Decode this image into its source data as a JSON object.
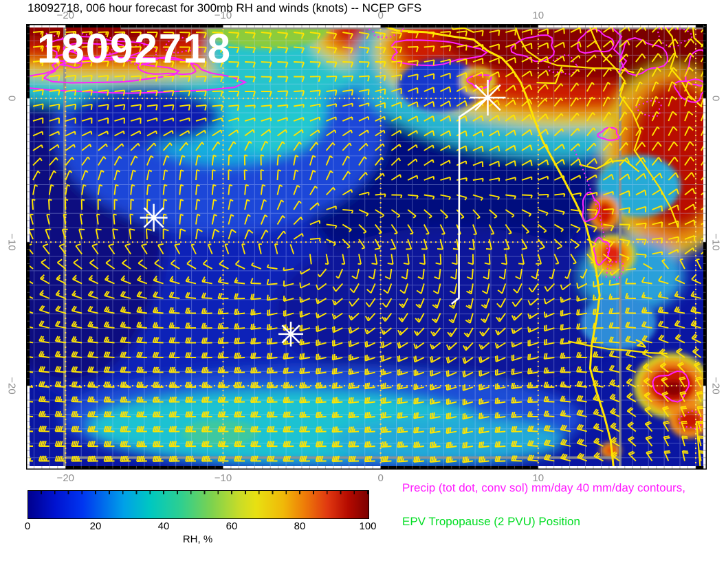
{
  "title": "18092718, 006 hour forecast for 300mb RH and winds (knots) -- NCEP GFS",
  "stamp": "18092718",
  "axes": {
    "lon_ticks": [
      {
        "value": -20,
        "label": "−20"
      },
      {
        "value": -10,
        "label": "−10"
      },
      {
        "value": 0,
        "label": "0"
      },
      {
        "value": 10,
        "label": "10"
      }
    ],
    "lat_ticks": [
      {
        "value": 0,
        "label": "0"
      },
      {
        "value": -10,
        "label": "−10"
      },
      {
        "value": -20,
        "label": "−20"
      }
    ]
  },
  "colorbar": {
    "label": "RH, %",
    "ticks": [
      "0",
      "20",
      "40",
      "60",
      "80",
      "100"
    ],
    "min": 0,
    "max": 100
  },
  "legend": {
    "precip": {
      "text": "Precip (tot dot, conv sol) mm/day 40 mm/day contours,",
      "color": "#ff1aff"
    },
    "epv": {
      "text": "EPV Tropopause (2 PVU) Position",
      "color": "#00dd22"
    }
  },
  "chart_data": {
    "type": "heatmap",
    "field": "300mb relative humidity, %",
    "overlay": "wind barbs, knots",
    "model": "NCEP GFS",
    "init_time": "18092718",
    "forecast_hour": 6,
    "lon_range": [
      -22.5,
      20.7
    ],
    "lat_range": [
      -25.83,
      5.17
    ],
    "grid_major_deg": 10,
    "grid_minor_deg": 1,
    "colors": {
      "barb": "#ffe400",
      "coast": "#ffe400",
      "precip_contour": "#ff20ff",
      "grat_major": "#ffd24d",
      "gray_line": "#909090",
      "marker": "#ffffff",
      "base_rh": "#0a16a2"
    },
    "rh_blobs": [
      [
        -12.0,
        -13.7,
        300,
        190,
        "#0d24b8"
      ],
      [
        4.2,
        -6.1,
        210,
        150,
        "#060e7e"
      ],
      [
        -19.8,
        -8.9,
        140,
        230,
        "#071080"
      ],
      [
        4.6,
        -14.7,
        260,
        120,
        "#0a129a"
      ],
      [
        -10.2,
        -2.2,
        240,
        150,
        "#1a46d8"
      ],
      [
        -9.8,
        -0.3,
        150,
        90,
        "#18aede"
      ],
      [
        -6.7,
        -1.3,
        70,
        55,
        "#20c8d0"
      ],
      [
        -12.8,
        1.6,
        270,
        48,
        "#20bcd4"
      ],
      [
        -16.3,
        3.3,
        310,
        80,
        "#28c0cc"
      ],
      [
        -16.8,
        4.2,
        285,
        62,
        "#dcd31e"
      ],
      [
        -16.9,
        4.5,
        272,
        54,
        "#ee8c10"
      ],
      [
        -17.0,
        4.8,
        260,
        48,
        "#cd1a06"
      ],
      [
        -18.3,
        5.4,
        185,
        34,
        "#8a0000"
      ],
      [
        -15.0,
        -1.2,
        110,
        42,
        "#0f1eb0"
      ],
      [
        -7.2,
        4.8,
        90,
        28,
        "#8ccc3a"
      ],
      [
        -5.4,
        3.3,
        130,
        65,
        "#26c4cc"
      ],
      [
        3.3,
        4.0,
        175,
        55,
        "#d8d020"
      ],
      [
        3.4,
        4.4,
        165,
        48,
        "#ee8c10"
      ],
      [
        3.6,
        4.6,
        155,
        42,
        "#ce1a06"
      ],
      [
        3.8,
        5.0,
        120,
        28,
        "#880000"
      ],
      [
        3.8,
        0.9,
        62,
        38,
        "#1238cc"
      ],
      [
        12.1,
        2.3,
        320,
        135,
        "#26b4d0"
      ],
      [
        12.7,
        3.3,
        300,
        112,
        "#dcd31e"
      ],
      [
        12.9,
        3.6,
        290,
        103,
        "#ee8c10"
      ],
      [
        13.1,
        3.9,
        280,
        96,
        "#cd1a06"
      ],
      [
        14.2,
        4.5,
        240,
        72,
        "#870000"
      ],
      [
        18.2,
        3.0,
        90,
        60,
        "#7a0000"
      ],
      [
        18.4,
        -4.4,
        100,
        138,
        "#d5cc22"
      ],
      [
        18.6,
        -4.2,
        90,
        128,
        "#e8880e"
      ],
      [
        18.8,
        -3.9,
        72,
        110,
        "#b90e00"
      ],
      [
        16.4,
        -6.1,
        60,
        45,
        "#28aad6"
      ],
      [
        16.0,
        -12.3,
        75,
        55,
        "#2ba0da"
      ],
      [
        15.1,
        -15.6,
        55,
        40,
        "#2f8cd8"
      ],
      [
        -3.7,
        -22.3,
        380,
        75,
        "#1a4ed6"
      ],
      [
        -5.9,
        -22.8,
        290,
        52,
        "#1cc2d2"
      ],
      [
        4.2,
        -23.8,
        170,
        35,
        "#22aad8"
      ],
      [
        -10.2,
        -23.3,
        55,
        20,
        "#3cc8a0"
      ],
      [
        6.2,
        1.2,
        26,
        21,
        "#d8cc28"
      ],
      [
        6.2,
        1.2,
        17,
        14,
        "#e06010"
      ],
      [
        14.2,
        -8.0,
        22,
        26,
        "#ef8c10"
      ],
      [
        14.2,
        -8.0,
        13,
        17,
        "#d01806"
      ],
      [
        14.7,
        -10.9,
        34,
        30,
        "#d8ce22"
      ],
      [
        14.7,
        -10.9,
        26,
        23,
        "#f0960e"
      ],
      [
        14.7,
        -10.9,
        16,
        15,
        "#e02008"
      ],
      [
        18.5,
        -20.0,
        56,
        48,
        "#d6cc20"
      ],
      [
        18.5,
        -20.0,
        46,
        38,
        "#ee8812"
      ],
      [
        18.5,
        -20.0,
        34,
        27,
        "#cc1404"
      ],
      [
        18.6,
        -20.2,
        16,
        12,
        "#8a0000"
      ],
      [
        19.6,
        -22.4,
        30,
        26,
        "#ee8812"
      ],
      [
        19.6,
        -22.4,
        18,
        15,
        "#c81404"
      ],
      [
        14.6,
        -24.5,
        15,
        12,
        "#ef9010"
      ],
      [
        14.6,
        -24.5,
        8,
        6,
        "#e03008"
      ]
    ],
    "wind_grid": {
      "lons": [
        -22,
        -15,
        -8,
        -1,
        6,
        13,
        19.5
      ],
      "lats": [
        4.5,
        0,
        -5,
        -10,
        -15,
        -20,
        -25.5
      ],
      "dir_from_deg": [
        [
          85,
          90,
          95,
          100,
          80,
          60,
          40
        ],
        [
          80,
          85,
          90,
          75,
          55,
          25,
          15
        ],
        [
          40,
          15,
          350,
          30,
          70,
          50,
          35
        ],
        [
          335,
          355,
          25,
          150,
          175,
          120,
          70
        ],
        [
          290,
          278,
          262,
          225,
          195,
          260,
          280
        ],
        [
          275,
          270,
          268,
          262,
          250,
          275,
          330
        ],
        [
          270,
          268,
          270,
          268,
          262,
          290,
          350
        ]
      ],
      "speed_kt": [
        [
          15,
          12,
          10,
          12,
          12,
          8,
          10
        ],
        [
          10,
          10,
          8,
          8,
          10,
          6,
          8
        ],
        [
          5,
          5,
          5,
          5,
          8,
          8,
          8
        ],
        [
          8,
          8,
          8,
          8,
          10,
          10,
          12
        ],
        [
          18,
          25,
          25,
          15,
          15,
          20,
          25
        ],
        [
          30,
          35,
          38,
          30,
          22,
          28,
          18
        ],
        [
          45,
          45,
          42,
          40,
          35,
          28,
          22
        ]
      ]
    },
    "coastline": [
      [
        0.1,
        5.06
      ],
      [
        1.1,
        4.7
      ],
      [
        2.9,
        4.6
      ],
      [
        4.6,
        4.3
      ],
      [
        5.9,
        4.1
      ],
      [
        6.8,
        3.3
      ],
      [
        7.7,
        2.8
      ],
      [
        8.3,
        2.1
      ],
      [
        8.9,
        1.1
      ],
      [
        9.3,
        0.0
      ],
      [
        9.7,
        -1.3
      ],
      [
        10.3,
        -3.0
      ],
      [
        11.0,
        -4.4
      ],
      [
        11.7,
        -5.8
      ],
      [
        12.4,
        -7.3
      ],
      [
        13.0,
        -8.7
      ],
      [
        13.4,
        -10.4
      ],
      [
        13.7,
        -12.1
      ],
      [
        13.9,
        -13.7
      ],
      [
        13.7,
        -15.4
      ],
      [
        13.4,
        -17.1
      ],
      [
        13.3,
        -18.8
      ],
      [
        13.7,
        -20.4
      ],
      [
        14.2,
        -22.1
      ],
      [
        14.6,
        -23.8
      ],
      [
        14.8,
        -25.83
      ]
    ],
    "borders": [
      [
        [
          8.5,
          5.17
        ],
        [
          8.8,
          4.2
        ],
        [
          9.3,
          3.3
        ],
        [
          10.1,
          2.7
        ],
        [
          11.2,
          2.3
        ],
        [
          12.4,
          2.2
        ],
        [
          13.5,
          2.1
        ],
        [
          14.8,
          2.1
        ],
        [
          16.1,
          1.8
        ]
      ],
      [
        [
          13.2,
          5.17
        ],
        [
          13.6,
          4.1
        ],
        [
          14.1,
          3.0
        ],
        [
          14.9,
          2.1
        ],
        [
          15.5,
          1.2
        ],
        [
          15.2,
          0.2
        ],
        [
          16.0,
          -1.0
        ],
        [
          16.5,
          -2.3
        ],
        [
          16.1,
          -3.6
        ],
        [
          16.9,
          -4.9
        ],
        [
          17.7,
          -6.2
        ],
        [
          18.4,
          -7.6
        ],
        [
          18.9,
          -9.0
        ]
      ],
      [
        [
          17.9,
          5.17
        ],
        [
          18.5,
          4.3
        ],
        [
          18.7,
          3.1
        ],
        [
          18.4,
          2.1
        ],
        [
          19.1,
          1.2
        ],
        [
          19.6,
          0.2
        ],
        [
          20.4,
          -0.6
        ]
      ],
      [
        [
          9.9,
          1.1
        ],
        [
          11.1,
          1.05
        ],
        [
          11.5,
          2.2
        ]
      ],
      [
        [
          12.6,
          -4.6
        ],
        [
          13.7,
          -4.9
        ],
        [
          14.6,
          -4.4
        ],
        [
          15.5,
          -4.3
        ],
        [
          16.4,
          -5.1
        ]
      ],
      [
        [
          11.9,
          -16.9
        ],
        [
          13.2,
          -17.2
        ],
        [
          14.5,
          -17.45
        ],
        [
          15.8,
          -17.55
        ],
        [
          17.0,
          -17.7
        ],
        [
          18.2,
          -17.75
        ]
      ],
      [
        [
          20.0,
          -22.5
        ],
        [
          20.7,
          -22.5
        ]
      ],
      [
        [
          20.05,
          -22.5
        ],
        [
          20.3,
          -25.83
        ]
      ],
      [
        [
          16.2,
          -16.8
        ],
        [
          16.6,
          -17.0
        ],
        [
          16.3,
          -17.2
        ],
        [
          16.8,
          -17.3
        ],
        [
          16.5,
          -16.9
        ]
      ],
      [
        [
          4.4,
          5.17
        ],
        [
          4.6,
          4.8
        ],
        [
          5.3,
          4.9
        ],
        [
          5.9,
          4.6
        ]
      ],
      [
        [
          19.8,
          5.17
        ],
        [
          19.9,
          4.2
        ],
        [
          20.5,
          3.6
        ]
      ]
    ],
    "precip_loops": [
      [
        -16.0,
        1.5,
        150,
        26,
        "s"
      ],
      [
        -17.5,
        1.9,
        90,
        18,
        "s"
      ],
      [
        -18.2,
        3.4,
        70,
        18,
        "s"
      ],
      [
        -18.2,
        3.4,
        42,
        10,
        "s"
      ],
      [
        -15.6,
        3.1,
        34,
        13,
        "d"
      ],
      [
        -19.7,
        2.7,
        20,
        11,
        "s"
      ],
      [
        -13.5,
        2.2,
        40,
        12,
        "s"
      ],
      [
        -12.7,
        3.7,
        24,
        11,
        "d"
      ],
      [
        3.3,
        3.2,
        65,
        18,
        "s"
      ],
      [
        0.3,
        4.7,
        22,
        9,
        "d"
      ],
      [
        6.3,
        1.2,
        16,
        10,
        "s"
      ],
      [
        9.8,
        3.5,
        30,
        18,
        "s"
      ],
      [
        11.6,
        2.3,
        20,
        13,
        "d"
      ],
      [
        13.6,
        3.9,
        26,
        16,
        "s"
      ],
      [
        16.6,
        2.9,
        34,
        24,
        "s"
      ],
      [
        18.6,
        4.3,
        24,
        13,
        "d"
      ],
      [
        19.7,
        0.6,
        22,
        16,
        "s"
      ],
      [
        17.1,
        -0.7,
        17,
        11,
        "d"
      ],
      [
        14.5,
        -2.5,
        14,
        9,
        "s"
      ],
      [
        20.2,
        2.0,
        18,
        26,
        "s"
      ],
      [
        13.3,
        -7.6,
        12,
        20,
        "s"
      ],
      [
        14.0,
        -10.6,
        11,
        18,
        "s"
      ],
      [
        15.0,
        -11.9,
        9,
        13,
        "d"
      ],
      [
        18.5,
        -20.0,
        26,
        20,
        "s"
      ],
      [
        19.7,
        -22.4,
        16,
        12,
        "d"
      ]
    ],
    "precip_lines": [
      {
        "style": "d",
        "pts": [
          [
            12.3,
            -3.6
          ],
          [
            12.9,
            -5.1
          ],
          [
            13.4,
            -6.6
          ],
          [
            13.9,
            -8.1
          ],
          [
            14.2,
            -9.6
          ],
          [
            14.5,
            -11.1
          ],
          [
            14.3,
            -12.6
          ]
        ]
      },
      {
        "style": "s",
        "pts": [
          [
            14.5,
            5.1
          ],
          [
            15.3,
            4.3
          ],
          [
            14.8,
            3.4
          ],
          [
            15.6,
            2.6
          ],
          [
            15.1,
            1.8
          ]
        ]
      },
      {
        "style": "d",
        "pts": [
          [
            -21.5,
            4.6
          ],
          [
            -20.2,
            4.2
          ],
          [
            -18.9,
            4.5
          ],
          [
            -17.6,
            4.1
          ],
          [
            -16.3,
            4.4
          ]
        ]
      }
    ],
    "gray_lines": [
      {
        "o": "v",
        "at": -20.05,
        "a": 5.17,
        "b": -25.83
      },
      {
        "o": "v",
        "at": 15.2,
        "a": 4.9,
        "b": -25.83
      },
      {
        "o": "h",
        "at": 4.9,
        "a": -16.5,
        "b": 20.7
      },
      {
        "o": "h",
        "at": -25.0,
        "a": -20.05,
        "b": 15.2
      }
    ],
    "storm_markers": [
      {
        "lon": -14.4,
        "lat": -8.3,
        "size": 20
      },
      {
        "lon": -5.7,
        "lat": -16.4,
        "size": 18
      },
      {
        "lon": 6.8,
        "lat": 0.05,
        "size": 26
      }
    ],
    "track_line": [
      [
        6.8,
        0.05
      ],
      [
        5.0,
        -1.3
      ],
      [
        4.97,
        -13.9
      ],
      [
        4.5,
        -14.3
      ]
    ]
  }
}
